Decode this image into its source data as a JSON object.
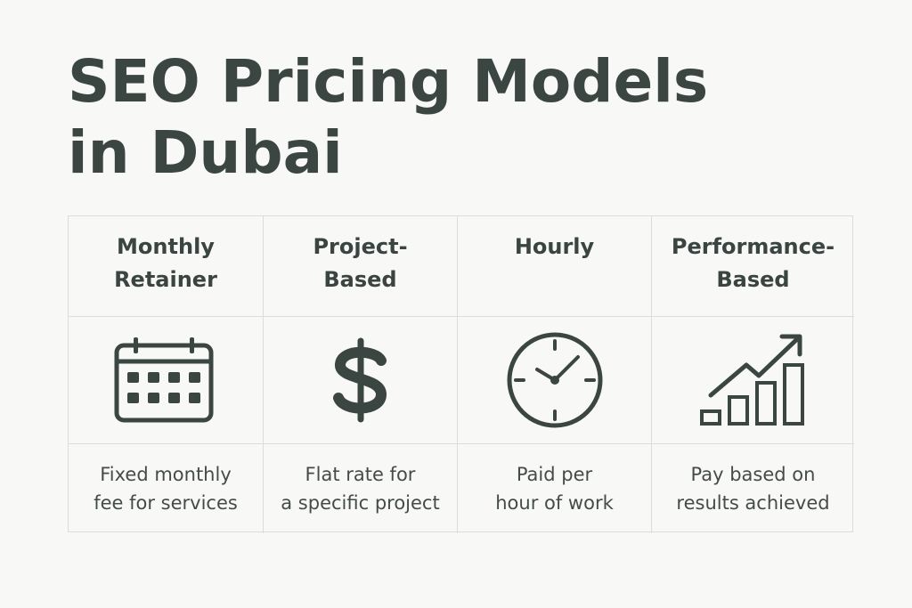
{
  "title": {
    "line1": "SEO Pricing Models",
    "line2": "in Dubai"
  },
  "columns": [
    {
      "header": [
        "Monthly",
        "Retainer"
      ],
      "icon": "calendar-icon",
      "description": [
        "Fixed monthly",
        "fee for services"
      ]
    },
    {
      "header": [
        "Project-",
        "Based"
      ],
      "icon": "dollar-icon",
      "description": [
        "Flat rate for",
        "a specific project"
      ]
    },
    {
      "header": [
        "Hourly"
      ],
      "icon": "clock-icon",
      "description": [
        "Paid per",
        "hour of work"
      ]
    },
    {
      "header": [
        "Performance-",
        "Based"
      ],
      "icon": "growth-chart-icon",
      "description": [
        "Pay based on",
        "results achieved"
      ]
    }
  ],
  "colors": {
    "text": "#3b4643",
    "icon": "#3b4643",
    "border": "#dcdcda",
    "background": "#f8f8f7"
  }
}
